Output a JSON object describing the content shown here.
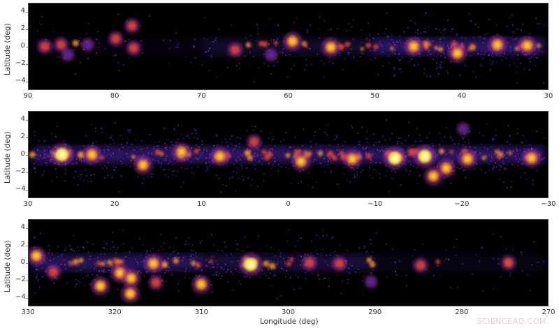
{
  "chart_data": [
    {
      "type": "heatmap",
      "title": "",
      "xlabel": "",
      "ylabel": "Latitude (deg)",
      "xlim": [
        90,
        30
      ],
      "ylim": [
        -5,
        5
      ],
      "xticks": [
        "90",
        "80",
        "70",
        "60",
        "50",
        "40",
        "30"
      ],
      "yticks": [
        "4",
        "2",
        "0",
        "−2",
        "−4"
      ],
      "description": "Gamma-ray sky map, Galactic longitude 90 to 30 deg; sparse sources at high longitudes, dense emission band near latitude 0 from 60 to 30",
      "sources": [
        {
          "l": 88.5,
          "b": 0.0,
          "intensity": "medium"
        },
        {
          "l": 86.6,
          "b": 0.2,
          "intensity": "medium"
        },
        {
          "l": 85.8,
          "b": -1.0,
          "intensity": "low"
        },
        {
          "l": 83.5,
          "b": 0.2,
          "intensity": "low"
        },
        {
          "l": 80.2,
          "b": 0.9,
          "intensity": "medium"
        },
        {
          "l": 78.3,
          "b": 2.4,
          "intensity": "medium"
        },
        {
          "l": 78.1,
          "b": -0.2,
          "intensity": "medium"
        },
        {
          "l": 66.2,
          "b": -0.4,
          "intensity": "medium"
        },
        {
          "l": 62.0,
          "b": -1.0,
          "intensity": "low"
        },
        {
          "l": 59.5,
          "b": 0.6,
          "intensity": "high"
        },
        {
          "l": 55.0,
          "b": -0.1,
          "intensity": "high"
        },
        {
          "l": 45.3,
          "b": 0.0,
          "intensity": "high"
        },
        {
          "l": 40.2,
          "b": -0.8,
          "intensity": "high"
        },
        {
          "l": 35.5,
          "b": 0.2,
          "intensity": "high"
        },
        {
          "l": 32.0,
          "b": 0.1,
          "intensity": "high"
        }
      ]
    },
    {
      "type": "heatmap",
      "title": "",
      "xlabel": "",
      "ylabel": "Latitude (deg)",
      "xlim": [
        30,
        -30
      ],
      "ylim": [
        -5,
        5
      ],
      "xticks": [
        "30",
        "20",
        "10",
        "0",
        "−10",
        "−20",
        "−30"
      ],
      "yticks": [
        "4",
        "2",
        "0",
        "−2",
        "−4"
      ],
      "description": "Gamma-ray sky map, Galactic longitude 30 to -30 deg; bright continuous band along latitude 0 with diffuse halo around -20",
      "sources": [
        {
          "l": 26.5,
          "b": 0.0,
          "intensity": "very high"
        },
        {
          "l": 23.0,
          "b": 0.0,
          "intensity": "high"
        },
        {
          "l": 17.0,
          "b": -1.2,
          "intensity": "high"
        },
        {
          "l": 12.5,
          "b": 0.3,
          "intensity": "high"
        },
        {
          "l": 8.0,
          "b": -0.2,
          "intensity": "high"
        },
        {
          "l": 4.0,
          "b": 1.5,
          "intensity": "medium"
        },
        {
          "l": -1.5,
          "b": -0.8,
          "intensity": "high"
        },
        {
          "l": -7.5,
          "b": -0.5,
          "intensity": "high"
        },
        {
          "l": -12.5,
          "b": -0.4,
          "intensity": "very high"
        },
        {
          "l": -16.0,
          "b": -0.2,
          "intensity": "very high"
        },
        {
          "l": -18.5,
          "b": -1.6,
          "intensity": "high"
        },
        {
          "l": -17.0,
          "b": -2.5,
          "intensity": "high"
        },
        {
          "l": -21.0,
          "b": -0.5,
          "intensity": "high"
        },
        {
          "l": -20.5,
          "b": 3.0,
          "intensity": "low"
        },
        {
          "l": -28.5,
          "b": -0.4,
          "intensity": "high"
        }
      ]
    },
    {
      "type": "heatmap",
      "title": "",
      "xlabel": "Longitude (deg)",
      "ylabel": "Latitude (deg)",
      "xlim": [
        330,
        270
      ],
      "ylim": [
        -5,
        5
      ],
      "xticks": [
        "330",
        "320",
        "310",
        "300",
        "290",
        "280",
        "270"
      ],
      "yticks": [
        "4",
        "2",
        "0",
        "−2",
        "−4"
      ],
      "description": "Gamma-ray sky map, Galactic longitude 330 to 270 deg; band of sources along latitude 0 fading toward 270",
      "sources": [
        {
          "l": 329.5,
          "b": 0.8,
          "intensity": "high"
        },
        {
          "l": 327.5,
          "b": -1.1,
          "intensity": "medium"
        },
        {
          "l": 322.0,
          "b": -2.7,
          "intensity": "high"
        },
        {
          "l": 319.7,
          "b": -1.2,
          "intensity": "high"
        },
        {
          "l": 318.4,
          "b": -1.8,
          "intensity": "high"
        },
        {
          "l": 318.5,
          "b": -3.6,
          "intensity": "high"
        },
        {
          "l": 315.5,
          "b": -2.3,
          "intensity": "medium"
        },
        {
          "l": 315.8,
          "b": -0.1,
          "intensity": "high"
        },
        {
          "l": 310.2,
          "b": -2.5,
          "intensity": "high"
        },
        {
          "l": 304.4,
          "b": -0.2,
          "intensity": "very high"
        },
        {
          "l": 297.5,
          "b": 0.0,
          "intensity": "medium"
        },
        {
          "l": 294.0,
          "b": -0.1,
          "intensity": "medium"
        },
        {
          "l": 290.3,
          "b": -2.2,
          "intensity": "low"
        },
        {
          "l": 284.5,
          "b": -0.3,
          "intensity": "medium"
        },
        {
          "l": 274.2,
          "b": 0.0,
          "intensity": "medium"
        }
      ]
    }
  ],
  "figure": {
    "ylabel": "Latitude (deg)",
    "xlabel": "Longitude (deg)",
    "panels": [
      {
        "xticks": [
          "90",
          "80",
          "70",
          "60",
          "50",
          "40",
          "30"
        ]
      },
      {
        "xticks": [
          "30",
          "20",
          "10",
          "0",
          "−10",
          "−20",
          "−30"
        ]
      },
      {
        "xticks": [
          "330",
          "320",
          "310",
          "300",
          "290",
          "280",
          "270"
        ]
      }
    ],
    "yticks": [
      "4",
      "2",
      "0",
      "−2",
      "−4"
    ],
    "colormap": [
      "#000000",
      "#2a0a6e",
      "#5a2fd0",
      "#b034b0",
      "#e8442a",
      "#f7941d",
      "#fde84b",
      "#ffffe0"
    ]
  },
  "watermark": "SCIENCEAQ.COM"
}
